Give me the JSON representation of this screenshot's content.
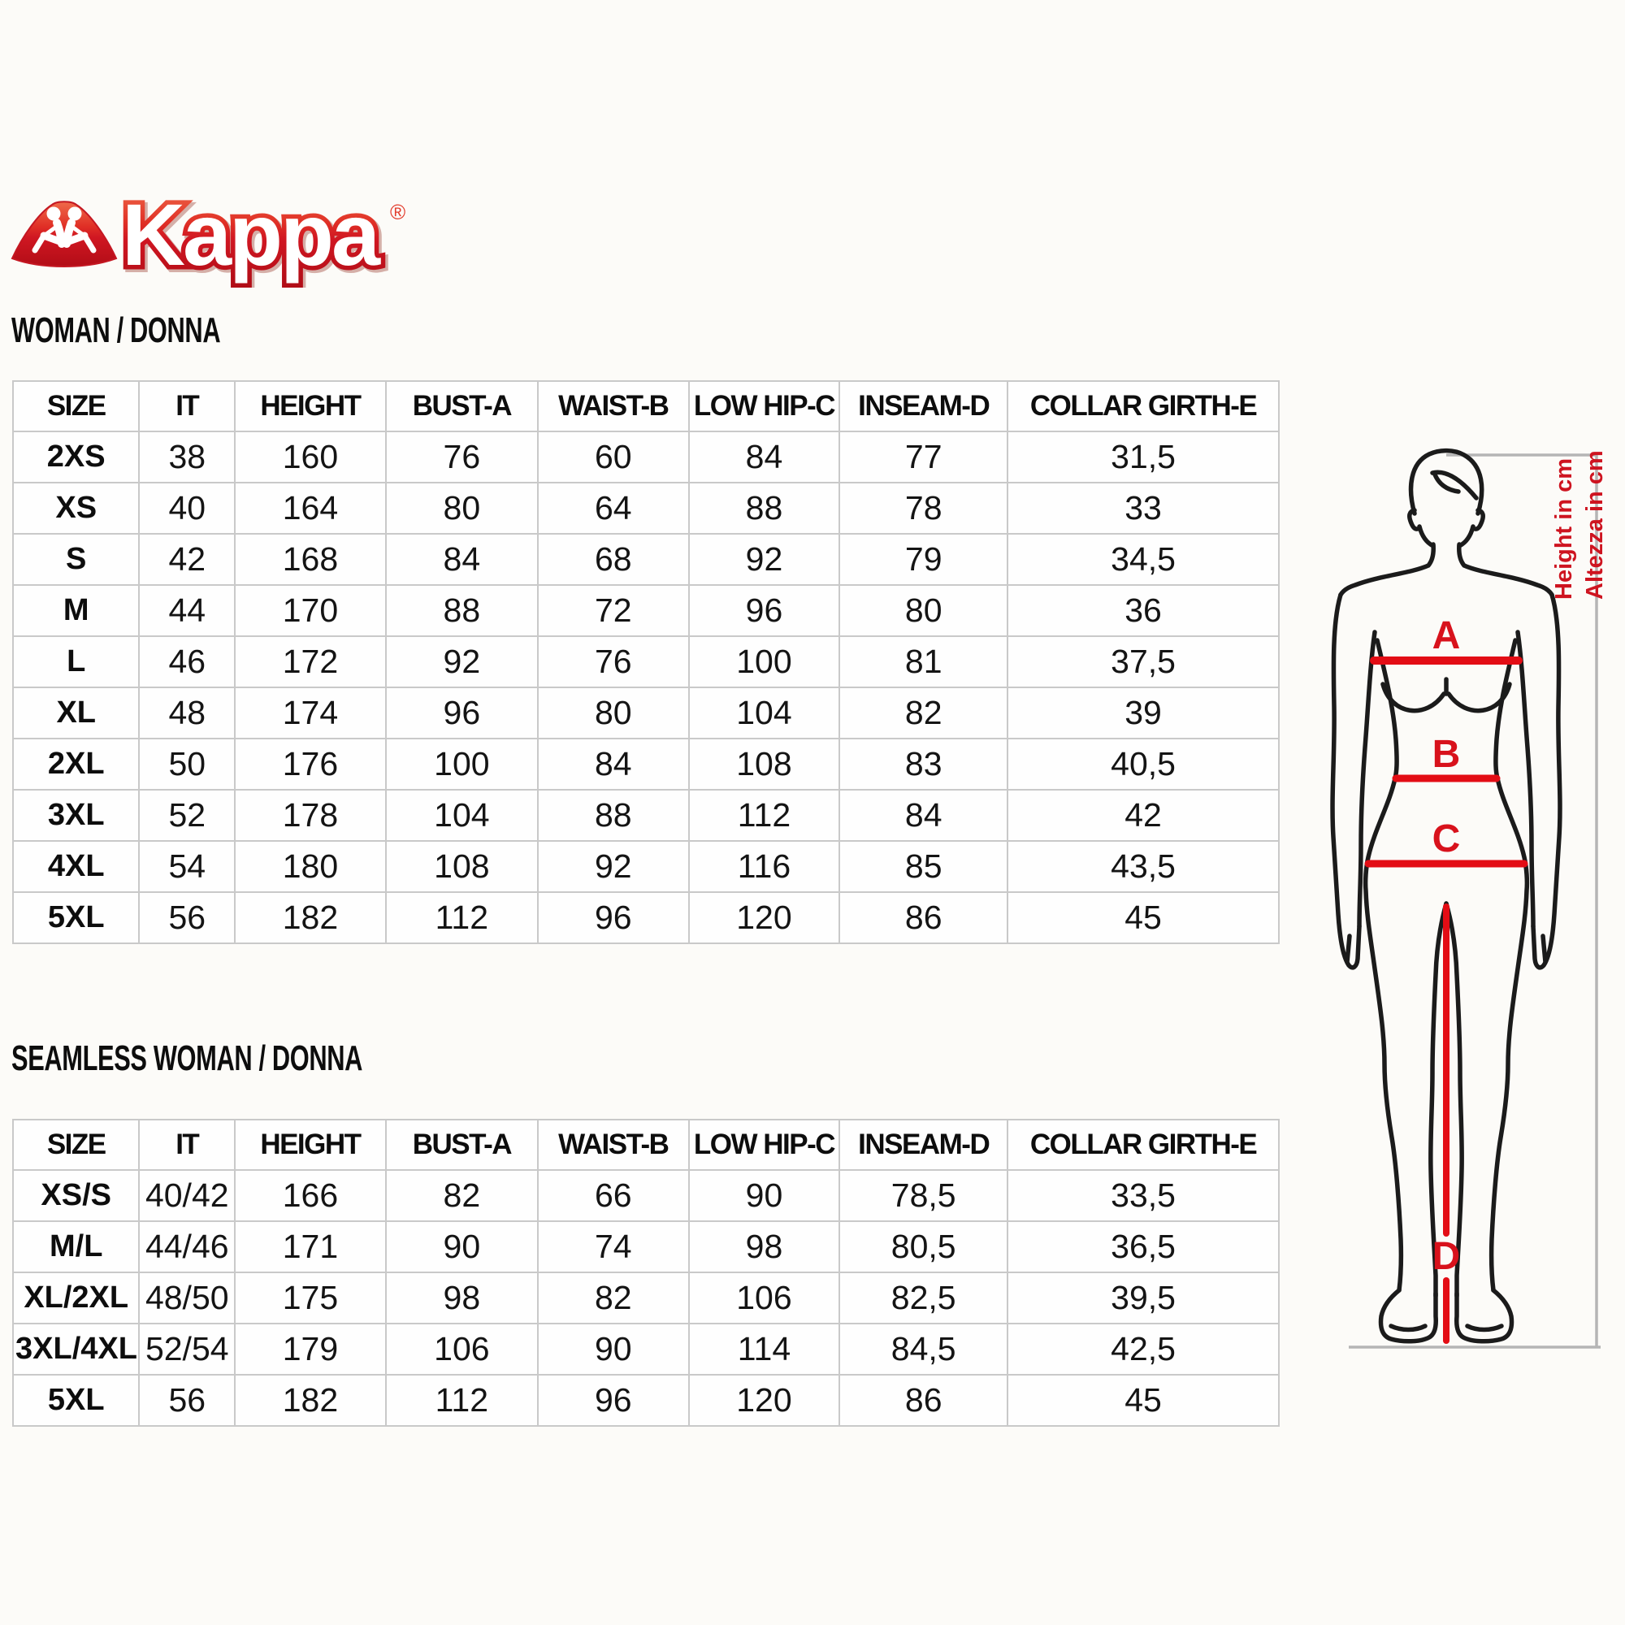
{
  "brand": {
    "wordmark": "Kappa",
    "registered": "®",
    "logo_icon": "kappa-omini-back-to-back-figures",
    "colors": {
      "red_light": "#ef6a4a",
      "red_mid": "#e03026",
      "red_dark": "#b20d17"
    }
  },
  "sections": [
    {
      "heading": "WOMAN / DONNA",
      "table": {
        "headers": [
          "SIZE",
          "IT",
          "HEIGHT",
          "BUST-A",
          "WAIST-B",
          "LOW HIP-C",
          "INSEAM-D",
          "COLLAR GIRTH-E"
        ],
        "rows": [
          [
            "2XS",
            "38",
            "160",
            "76",
            "60",
            "84",
            "77",
            "31,5"
          ],
          [
            "XS",
            "40",
            "164",
            "80",
            "64",
            "88",
            "78",
            "33"
          ],
          [
            "S",
            "42",
            "168",
            "84",
            "68",
            "92",
            "79",
            "34,5"
          ],
          [
            "M",
            "44",
            "170",
            "88",
            "72",
            "96",
            "80",
            "36"
          ],
          [
            "L",
            "46",
            "172",
            "92",
            "76",
            "100",
            "81",
            "37,5"
          ],
          [
            "XL",
            "48",
            "174",
            "96",
            "80",
            "104",
            "82",
            "39"
          ],
          [
            "2XL",
            "50",
            "176",
            "100",
            "84",
            "108",
            "83",
            "40,5"
          ],
          [
            "3XL",
            "52",
            "178",
            "104",
            "88",
            "112",
            "84",
            "42"
          ],
          [
            "4XL",
            "54",
            "180",
            "108",
            "92",
            "116",
            "85",
            "43,5"
          ],
          [
            "5XL",
            "56",
            "182",
            "112",
            "96",
            "120",
            "86",
            "45"
          ]
        ]
      }
    },
    {
      "heading": "SEAMLESS WOMAN / DONNA",
      "table": {
        "headers": [
          "SIZE",
          "IT",
          "HEIGHT",
          "BUST-A",
          "WAIST-B",
          "LOW HIP-C",
          "INSEAM-D",
          "COLLAR GIRTH-E"
        ],
        "rows": [
          [
            "XS/S",
            "40/42",
            "166",
            "82",
            "66",
            "90",
            "78,5",
            "33,5"
          ],
          [
            "M/L",
            "44/46",
            "171",
            "90",
            "74",
            "98",
            "80,5",
            "36,5"
          ],
          [
            "XL/2XL",
            "48/50",
            "175",
            "98",
            "82",
            "106",
            "82,5",
            "39,5"
          ],
          [
            "3XL/4XL",
            "52/54",
            "179",
            "106",
            "90",
            "114",
            "84,5",
            "42,5"
          ],
          [
            "5XL",
            "56",
            "182",
            "112",
            "96",
            "120",
            "86",
            "45"
          ]
        ]
      }
    }
  ],
  "figure": {
    "labels": {
      "bust_line": "A",
      "waist_line": "B",
      "low_hip_line": "C",
      "inseam_line": "D"
    },
    "height_note_en": "Height in cm",
    "height_note_it": "Altezza in cm",
    "accent_red": "#e30d15",
    "bracket_gray": "#b5b5b5"
  }
}
